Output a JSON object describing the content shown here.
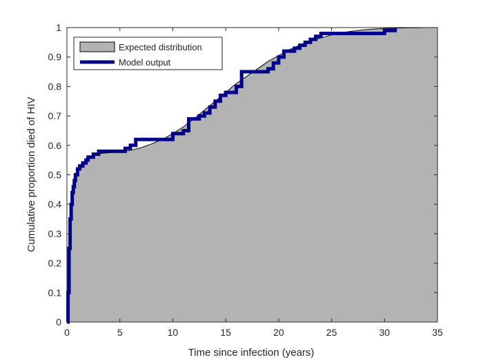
{
  "chart_data": {
    "type": "area",
    "title": "",
    "xlabel": "Time since infection (years)",
    "ylabel": "Cumulative proportion died of HIV",
    "xlim": [
      0,
      35
    ],
    "ylim": [
      0,
      1
    ],
    "xticks": [
      0,
      5,
      10,
      15,
      20,
      25,
      30,
      35
    ],
    "yticks": [
      0,
      0.1,
      0.2,
      0.3,
      0.4,
      0.5,
      0.6,
      0.7,
      0.8,
      0.9,
      1
    ],
    "xtick_labels": [
      "0",
      "5",
      "10",
      "15",
      "20",
      "25",
      "30",
      "35"
    ],
    "ytick_labels": [
      "0",
      "0.1",
      "0.2",
      "0.3",
      "0.4",
      "0.5",
      "0.6",
      "0.7",
      "0.8",
      "0.9",
      "1"
    ],
    "grid": false,
    "legend_position": "top-left",
    "series": [
      {
        "name": "Expected distribution",
        "kind": "area",
        "color": "#b3b3b3",
        "edge_color": "#000000",
        "x": [
          0,
          0.1,
          0.2,
          0.3,
          0.5,
          0.7,
          1,
          1.5,
          2,
          3,
          4,
          5,
          6,
          7,
          8,
          9,
          10,
          11,
          12,
          13,
          14,
          15,
          16,
          17,
          18,
          19,
          20,
          21,
          22,
          23,
          24,
          25,
          26,
          27,
          28,
          29,
          30,
          31,
          32,
          33,
          34,
          35
        ],
        "y": [
          0,
          0.1,
          0.22,
          0.33,
          0.42,
          0.47,
          0.51,
          0.54,
          0.56,
          0.572,
          0.575,
          0.578,
          0.583,
          0.592,
          0.605,
          0.62,
          0.64,
          0.663,
          0.69,
          0.72,
          0.75,
          0.78,
          0.81,
          0.835,
          0.86,
          0.885,
          0.905,
          0.925,
          0.94,
          0.955,
          0.965,
          0.975,
          0.983,
          0.988,
          0.992,
          0.995,
          0.997,
          0.998,
          0.999,
          0.9995,
          1,
          1
        ]
      },
      {
        "name": "Model output",
        "kind": "step",
        "color": "#00008b",
        "x": [
          0,
          0.1,
          0.2,
          0.3,
          0.4,
          0.5,
          0.6,
          0.7,
          0.8,
          1.0,
          1.2,
          1.5,
          1.8,
          2.0,
          2.5,
          3.0,
          4.0,
          5.0,
          5.5,
          6.0,
          6.5,
          9.5,
          10.0,
          10.5,
          11.0,
          11.5,
          12.0,
          12.5,
          13.0,
          13.5,
          14.0,
          14.5,
          15.0,
          15.5,
          16.0,
          16.5,
          18.5,
          19.0,
          19.5,
          20.0,
          20.5,
          21.0,
          21.5,
          22.0,
          22.5,
          23.0,
          23.5,
          24.0,
          29.5,
          30.0,
          30.5,
          31.0
        ],
        "y": [
          0.0,
          0.1,
          0.25,
          0.35,
          0.4,
          0.44,
          0.46,
          0.48,
          0.5,
          0.52,
          0.53,
          0.54,
          0.55,
          0.56,
          0.57,
          0.58,
          0.58,
          0.58,
          0.59,
          0.6,
          0.62,
          0.62,
          0.64,
          0.64,
          0.65,
          0.69,
          0.69,
          0.7,
          0.71,
          0.73,
          0.75,
          0.77,
          0.78,
          0.78,
          0.8,
          0.85,
          0.85,
          0.86,
          0.88,
          0.9,
          0.92,
          0.92,
          0.93,
          0.94,
          0.95,
          0.96,
          0.97,
          0.98,
          0.98,
          0.99,
          0.99,
          1.0
        ]
      }
    ]
  }
}
